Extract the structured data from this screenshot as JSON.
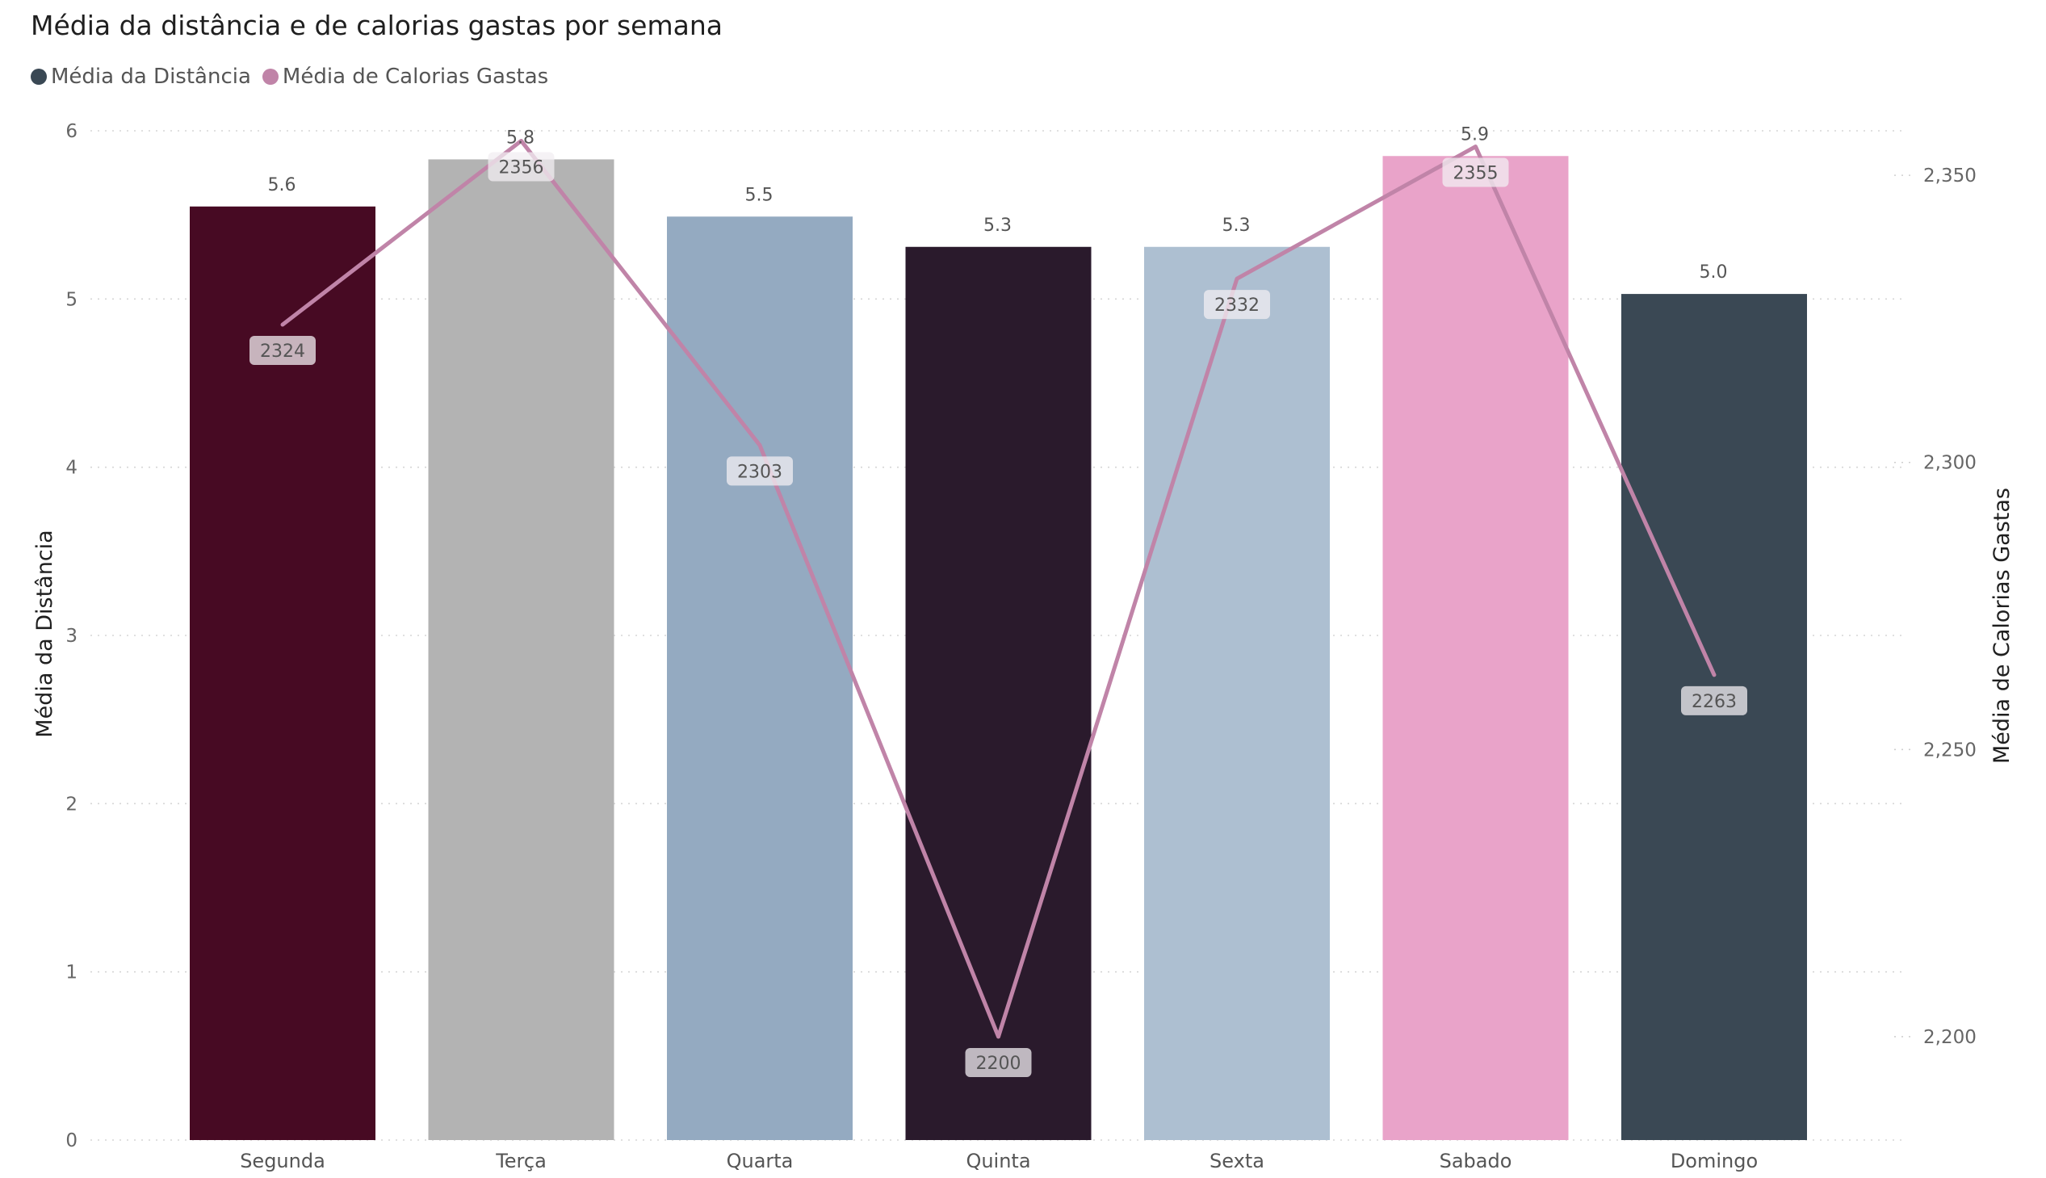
{
  "chart_data": {
    "type": "bar",
    "title": "Média da distância e de calorias gastas por semana",
    "categories": [
      "Segunda",
      "Terça",
      "Quarta",
      "Quinta",
      "Sexta",
      "Sabado",
      "Domingo"
    ],
    "series": [
      {
        "name": "Média da Distância",
        "type": "bar",
        "axis": "left",
        "values": [
          5.55,
          5.83,
          5.49,
          5.31,
          5.31,
          5.85,
          5.03
        ],
        "data_labels": [
          "5.6",
          "5.8",
          "5.5",
          "5.3",
          "5.3",
          "5.9",
          "5.0"
        ],
        "bar_colors": [
          "#470A23",
          "#B3B3B3",
          "#94AAC1",
          "#2A1A2C",
          "#ADBFD1",
          "#E9A3C9",
          "#3A4854"
        ],
        "legend_color": "#3A4854"
      },
      {
        "name": "Média de Calorias Gastas",
        "type": "line",
        "axis": "right",
        "values": [
          2324,
          2356,
          2303,
          2200,
          2332,
          2355,
          2263
        ],
        "data_labels": [
          "2324",
          "2356",
          "2303",
          "2200",
          "2332",
          "2355",
          "2263"
        ],
        "color": "#C084A8"
      }
    ],
    "xlabel": "",
    "ylabel": "Média da Distância",
    "y2label": "Média de Calorias Gastas",
    "ylim": [
      0,
      6
    ],
    "y2lim": [
      2182,
      2360
    ],
    "yticks": [
      "0",
      "1",
      "2",
      "3",
      "4",
      "5",
      "6"
    ],
    "y2ticks": [
      "2,200",
      "2,250",
      "2,300",
      "2,350"
    ],
    "y2tick_values": [
      2200,
      2250,
      2300,
      2350
    ],
    "grid": true,
    "legend_position": "top-left"
  }
}
